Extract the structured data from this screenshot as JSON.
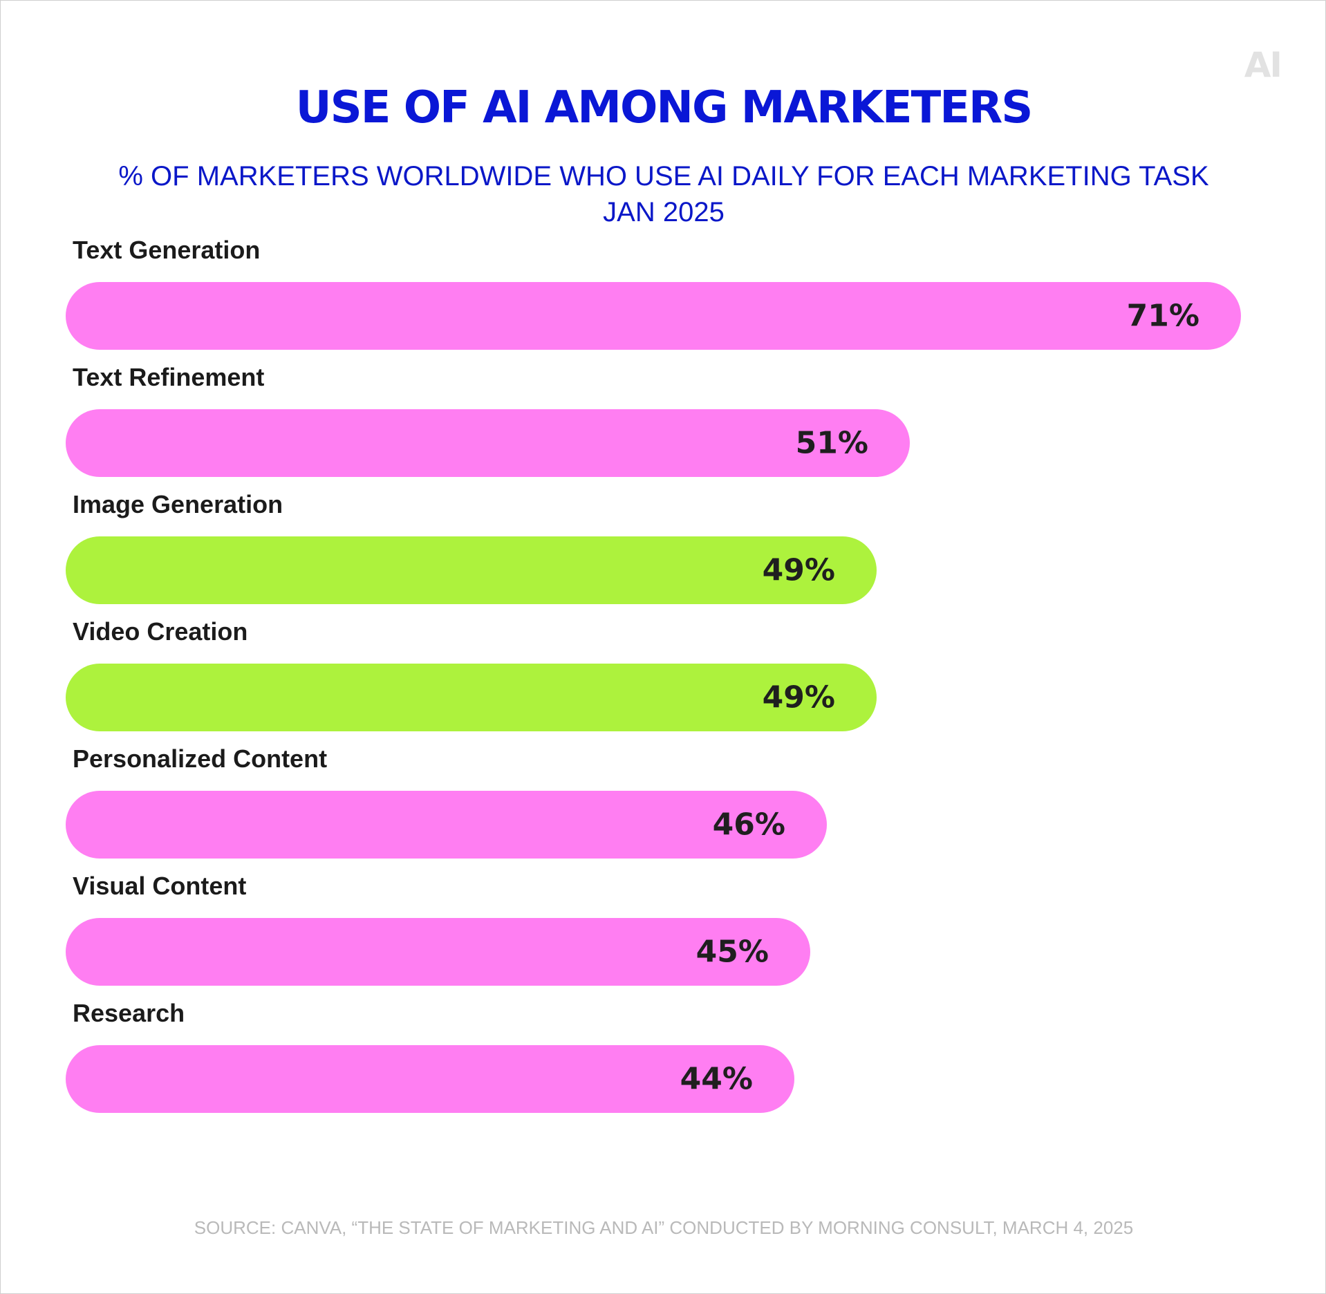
{
  "logo": "AI",
  "chart_data": {
    "type": "bar",
    "orientation": "horizontal",
    "title": "USE OF AI AMONG MARKETERS",
    "subtitle_lines": [
      "% OF MARKETERS WORLDWIDE WHO USE AI DAILY FOR EACH MARKETING TASK",
      "JAN 2025"
    ],
    "categories": [
      "Text Generation",
      "Text Refinement",
      "Image Generation",
      "Video Creation",
      "Personalized Content",
      "Visual Content",
      "Research"
    ],
    "values": [
      71,
      51,
      49,
      49,
      46,
      45,
      44
    ],
    "value_labels": [
      "71%",
      "51%",
      "49%",
      "49%",
      "46%",
      "45%",
      "44%"
    ],
    "bar_colors": [
      "#ff7ef2",
      "#ff7ef2",
      "#adf23d",
      "#adf23d",
      "#ff7ef2",
      "#ff7ef2",
      "#ff7ef2"
    ],
    "legend": "none",
    "grid": false,
    "source": "SOURCE: CANVA, “THE STATE OF MARKETING AND AI” CONDUCTED BY MORNING CONSULT, MARCH 4, 2025"
  }
}
